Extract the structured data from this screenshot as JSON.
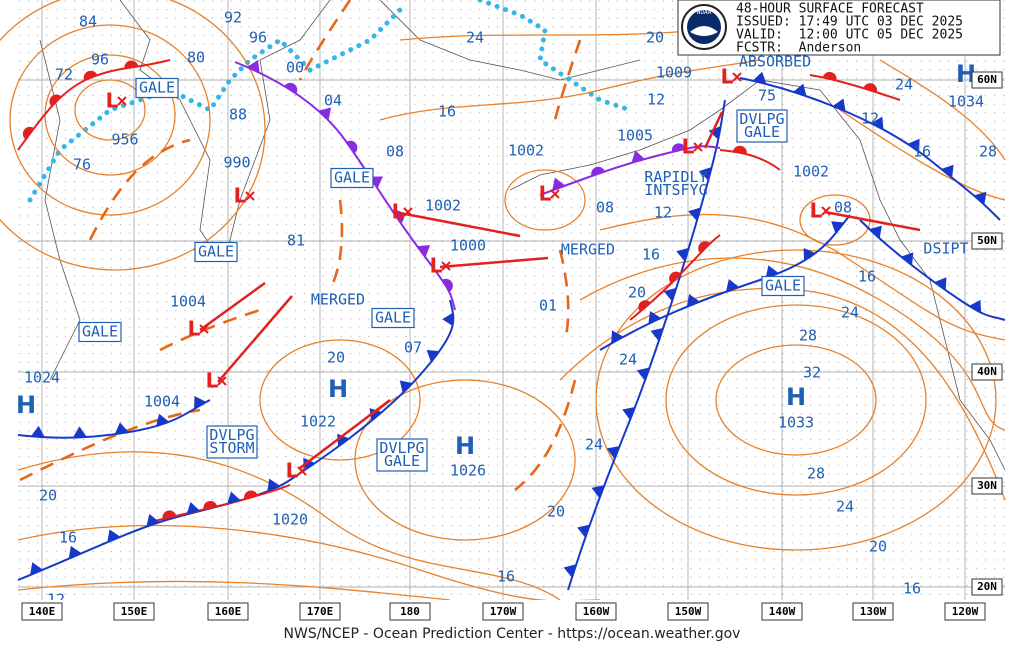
{
  "header": {
    "title": "48-HOUR SURFACE FORECAST",
    "issued": "ISSUED: 17:49 UTC 03 DEC 2025",
    "valid": "VALID:  12:00 UTC 05 DEC 2025",
    "forecaster": "FCSTR:  Anderson",
    "logo": "NOAA"
  },
  "footer": "NWS/NCEP - Ocean Prediction Center - https://ocean.weather.gov",
  "longitude_labels": [
    "140E",
    "150E",
    "160E",
    "170E",
    "180",
    "170W",
    "160W",
    "150W",
    "140W",
    "130W",
    "120W"
  ],
  "latitude_labels": [
    "60N",
    "50N",
    "40N",
    "30N",
    "20N"
  ],
  "pressure_symbols": [
    "H",
    "H",
    "H",
    "H",
    "H",
    "L",
    "L",
    "L",
    "L",
    "L",
    "L",
    "L",
    "L",
    "L",
    "L",
    "L"
  ],
  "isobar_labels": [
    "84",
    "96",
    "72",
    "956",
    "76",
    "990",
    "92",
    "96",
    "80",
    "88",
    "00",
    "04",
    "08",
    "24",
    "16",
    "1002",
    "1002",
    "1000",
    "81",
    "1004",
    "1024",
    "1004",
    "1022",
    "07",
    "20",
    "01",
    "08",
    "12",
    "16",
    "20",
    "24",
    "1009",
    "12",
    "1005",
    "75",
    "20",
    "1034",
    "24",
    "12",
    "16",
    "28",
    "1002",
    "08",
    "16",
    "24",
    "28",
    "32",
    "1033",
    "28",
    "24",
    "20",
    "16",
    "1026",
    "1020",
    "24",
    "20",
    "16",
    "20",
    "16",
    "12"
  ],
  "annotations": [
    [
      "ABSORBED"
    ],
    [
      "RAPIDLY",
      "INTSFYG"
    ],
    [
      "MERGED"
    ],
    [
      "MERGED"
    ],
    [
      "DSIPT"
    ]
  ],
  "boxed_labels": [
    [
      "GALE"
    ],
    [
      "GALE"
    ],
    [
      "GALE"
    ],
    [
      "GALE"
    ],
    [
      "GALE"
    ],
    [
      "GALE"
    ],
    [
      "DVLPG",
      "GALE"
    ],
    [
      "DVLPG",
      "STORM"
    ],
    [
      "DVLPG",
      "GALE"
    ]
  ]
}
